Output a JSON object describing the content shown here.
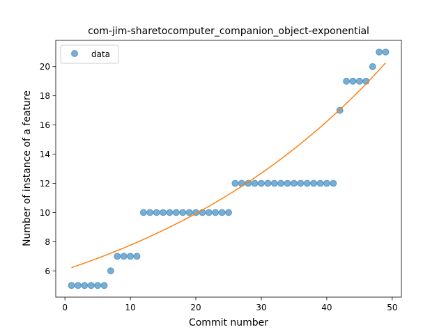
{
  "chart_data": {
    "type": "scatter",
    "title": "com-jim-sharetocomputer_companion_object-exponential",
    "xlabel": "Commit number",
    "ylabel": "Number of instance of a feature",
    "xlim": [
      -1.4,
      51.4
    ],
    "ylim": [
      4.2,
      21.8
    ],
    "xticks": [
      0,
      10,
      20,
      30,
      40,
      50
    ],
    "yticks": [
      6,
      8,
      10,
      12,
      14,
      16,
      18,
      20
    ],
    "grid": false,
    "legend": {
      "placement": "top-left",
      "entries": [
        {
          "label": "data",
          "marker": "circle",
          "color": "#1f77b4"
        }
      ]
    },
    "series": [
      {
        "name": "data",
        "kind": "scatter",
        "color": "#1f77b4",
        "alpha": 0.6,
        "x": [
          1,
          2,
          3,
          4,
          5,
          6,
          7,
          8,
          9,
          10,
          11,
          12,
          13,
          14,
          15,
          16,
          17,
          18,
          19,
          20,
          21,
          22,
          23,
          24,
          25,
          26,
          27,
          28,
          29,
          30,
          31,
          32,
          33,
          34,
          35,
          36,
          37,
          38,
          39,
          40,
          41,
          42,
          43,
          44,
          45,
          46,
          47,
          48,
          49
        ],
        "y": [
          5,
          5,
          5,
          5,
          5,
          5,
          6,
          7,
          7,
          7,
          7,
          10,
          10,
          10,
          10,
          10,
          10,
          10,
          10,
          10,
          10,
          10,
          10,
          10,
          10,
          12,
          12,
          12,
          12,
          12,
          12,
          12,
          12,
          12,
          12,
          12,
          12,
          12,
          12,
          12,
          12,
          17,
          19,
          19,
          19,
          19,
          20,
          21,
          21
        ]
      },
      {
        "kind": "line",
        "color": "#ff7f0e",
        "curve": "exponential",
        "a": 6.07,
        "b": 0.0246,
        "x_range": [
          1,
          49
        ]
      }
    ]
  }
}
